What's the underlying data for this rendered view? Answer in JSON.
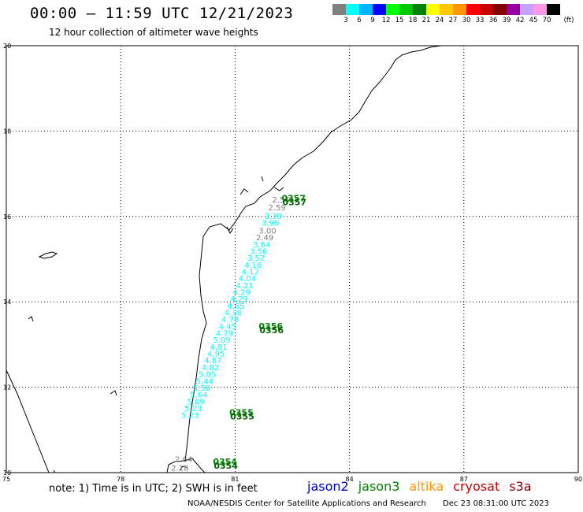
{
  "header": {
    "title": "00:00 – 11:59 UTC 12/21/2023",
    "subtitle": "12 hour collection of altimeter wave heights"
  },
  "legend": {
    "colors": [
      "#808080",
      "#00ffff",
      "#00b4ff",
      "#0000ff",
      "#00ff00",
      "#00c800",
      "#008200",
      "#ffff00",
      "#ffc800",
      "#ff9600",
      "#ff0000",
      "#c80000",
      "#820000",
      "#9600a0",
      "#c8a0ff",
      "#ff96e6",
      "#000000"
    ],
    "labels": [
      "3",
      "6",
      "9",
      "12",
      "15",
      "18",
      "21",
      "24",
      "27",
      "30",
      "33",
      "36",
      "39",
      "42",
      "45",
      "70"
    ],
    "unit": "(ft)"
  },
  "axes": {
    "x_ticks": [
      "75",
      "78",
      "81",
      "84",
      "87",
      "90"
    ],
    "y_ticks": [
      "20",
      "18",
      "16",
      "14",
      "12",
      "10"
    ]
  },
  "map_data": {
    "lon_range": [
      75,
      90
    ],
    "lat_range": [
      10,
      20
    ],
    "track": [
      {
        "lon": 82.2,
        "lat": 16.33,
        "v": "2.56",
        "c": "#808080"
      },
      {
        "lon": 82.1,
        "lat": 16.14,
        "v": "2.59",
        "c": "#808080"
      },
      {
        "lon": 82.0,
        "lat": 15.94,
        "v": "3.39",
        "c": "#00ffff"
      },
      {
        "lon": 81.92,
        "lat": 15.78,
        "v": "3.96",
        "c": "#00ffff"
      },
      {
        "lon": 81.85,
        "lat": 15.6,
        "v": "3.00",
        "c": "#808080"
      },
      {
        "lon": 81.78,
        "lat": 15.44,
        "v": "2.49",
        "c": "#808080"
      },
      {
        "lon": 81.7,
        "lat": 15.28,
        "v": "3.64",
        "c": "#00ffff"
      },
      {
        "lon": 81.62,
        "lat": 15.12,
        "v": "3.56",
        "c": "#00ffff"
      },
      {
        "lon": 81.55,
        "lat": 14.96,
        "v": "3.52",
        "c": "#00ffff"
      },
      {
        "lon": 81.47,
        "lat": 14.8,
        "v": "4.16",
        "c": "#00ffff"
      },
      {
        "lon": 81.4,
        "lat": 14.64,
        "v": "4.12",
        "c": "#00ffff"
      },
      {
        "lon": 81.32,
        "lat": 14.48,
        "v": "4.04",
        "c": "#00ffff"
      },
      {
        "lon": 81.25,
        "lat": 14.32,
        "v": "4.21",
        "c": "#00ffff"
      },
      {
        "lon": 81.17,
        "lat": 14.16,
        "v": "4.29",
        "c": "#00ffff"
      },
      {
        "lon": 81.1,
        "lat": 14.0,
        "v": "4.29",
        "c": "#00ffff"
      },
      {
        "lon": 81.02,
        "lat": 13.84,
        "v": "4.65",
        "c": "#00ffff"
      },
      {
        "lon": 80.95,
        "lat": 13.68,
        "v": "4.38",
        "c": "#00ffff"
      },
      {
        "lon": 80.87,
        "lat": 13.52,
        "v": "4.78",
        "c": "#00ffff"
      },
      {
        "lon": 80.8,
        "lat": 13.36,
        "v": "4.45",
        "c": "#00ffff"
      },
      {
        "lon": 80.72,
        "lat": 13.2,
        "v": "4.79",
        "c": "#00ffff"
      },
      {
        "lon": 80.65,
        "lat": 13.04,
        "v": "5.09",
        "c": "#00ffff"
      },
      {
        "lon": 80.57,
        "lat": 12.88,
        "v": "4.81",
        "c": "#00ffff"
      },
      {
        "lon": 80.5,
        "lat": 12.72,
        "v": "4.95",
        "c": "#00ffff"
      },
      {
        "lon": 80.42,
        "lat": 12.56,
        "v": "4.87",
        "c": "#00ffff"
      },
      {
        "lon": 80.35,
        "lat": 12.4,
        "v": "4.82",
        "c": "#00ffff"
      },
      {
        "lon": 80.27,
        "lat": 12.24,
        "v": "5.05",
        "c": "#00ffff"
      },
      {
        "lon": 80.2,
        "lat": 12.08,
        "v": "5.44",
        "c": "#00ffff"
      },
      {
        "lon": 80.12,
        "lat": 11.92,
        "v": "5.56",
        "c": "#00ffff"
      },
      {
        "lon": 80.05,
        "lat": 11.76,
        "v": "5.64",
        "c": "#00ffff"
      },
      {
        "lon": 79.97,
        "lat": 11.6,
        "v": "5.89",
        "c": "#00ffff"
      },
      {
        "lon": 79.9,
        "lat": 11.44,
        "v": "5.23",
        "c": "#00ffff"
      },
      {
        "lon": 79.82,
        "lat": 11.28,
        "v": "5.23",
        "c": "#00ffff"
      },
      {
        "lon": 79.65,
        "lat": 10.25,
        "v": "2.64",
        "c": "#808080"
      },
      {
        "lon": 79.55,
        "lat": 10.05,
        "v": "2.18",
        "c": "#808080"
      }
    ],
    "passes": [
      {
        "lon": 82.22,
        "lat": 16.32,
        "t": "0357"
      },
      {
        "lon": 81.62,
        "lat": 13.32,
        "t": "0356"
      },
      {
        "lon": 80.85,
        "lat": 11.3,
        "t": "0355"
      },
      {
        "lon": 80.42,
        "lat": 10.15,
        "t": "0354"
      }
    ]
  },
  "note": "note: 1) Time is in UTC; 2) SWH is in feet",
  "satellites": [
    {
      "name": "jason2",
      "color": "#0000c8"
    },
    {
      "name": "jason3",
      "color": "#008200"
    },
    {
      "name": "altika",
      "color": "#ff9600"
    },
    {
      "name": "cryosat",
      "color": "#c80000"
    },
    {
      "name": "s3a",
      "color": "#820000"
    }
  ],
  "footer": {
    "credit": "NOAA/NESDIS Center for Satellite Applications and Research",
    "datetime": "Dec 23 08:31:00 UTC 2023"
  }
}
